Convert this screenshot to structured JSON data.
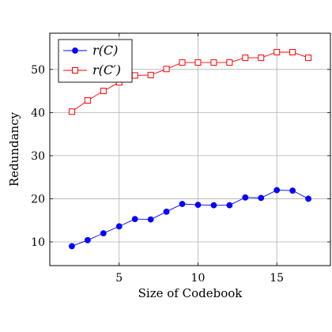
{
  "chart_data": {
    "type": "line",
    "xlabel": "Size of Codebook",
    "ylabel": "Redundancy",
    "xlim": [
      0.6,
      18.4
    ],
    "ylim": [
      4.5,
      58.4
    ],
    "xticks": [
      5,
      10,
      15
    ],
    "yticks": [
      10,
      20,
      30,
      40,
      50
    ],
    "grid": true,
    "legend_position": "top-left",
    "series": [
      {
        "name": "r(C)",
        "color": "#0000ff",
        "marker": "circle",
        "x": [
          2,
          3,
          4,
          5,
          6,
          7,
          8,
          9,
          10,
          11,
          12,
          13,
          14,
          15,
          16,
          17
        ],
        "y": [
          9.0,
          10.4,
          12.0,
          13.6,
          15.3,
          15.2,
          17.0,
          18.8,
          18.6,
          18.5,
          18.5,
          20.3,
          20.2,
          22.0,
          21.9,
          20.0
        ]
      },
      {
        "name": "r(C′)",
        "color": "#ff0000",
        "marker": "square",
        "x": [
          2,
          3,
          4,
          5,
          6,
          7,
          8,
          9,
          10,
          11,
          12,
          13,
          14,
          15,
          16,
          17
        ],
        "y": [
          40.2,
          42.8,
          45.0,
          47.0,
          48.6,
          48.7,
          50.1,
          51.6,
          51.6,
          51.6,
          51.6,
          52.7,
          52.7,
          54.0,
          54.0,
          52.7
        ]
      }
    ]
  }
}
